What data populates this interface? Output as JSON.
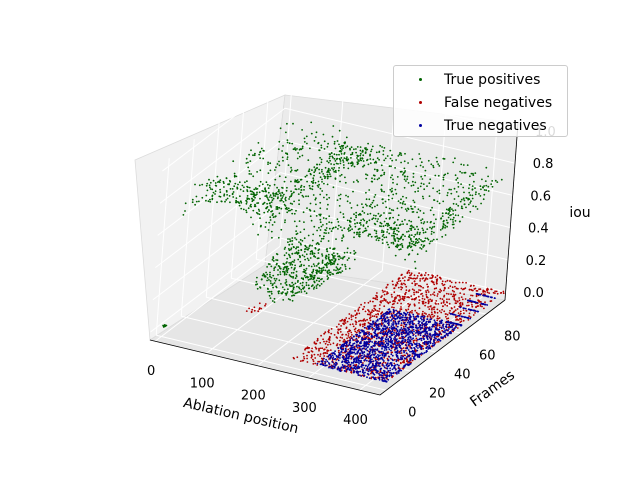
{
  "chart_data": {
    "type": "scatter3d",
    "title": "",
    "xlabel": "Ablation position",
    "ylabel": "Frames",
    "zlabel": "iou",
    "xticks": [
      "0",
      "100",
      "200",
      "300",
      "400"
    ],
    "yticks": [
      "0",
      "20",
      "40",
      "60",
      "80"
    ],
    "zticks": [
      "0.0",
      "0.2",
      "0.4",
      "0.6",
      "0.8",
      "1.0"
    ],
    "xlim": [
      -10,
      440
    ],
    "ylim": [
      -5,
      95
    ],
    "zlim": [
      -0.05,
      1.05
    ],
    "grid": true,
    "legend_position": "top-right",
    "series": [
      {
        "name": "True positives",
        "color": "#006400",
        "regions": [
          {
            "x": [
              0,
              440
            ],
            "y": [
              10,
              90
            ],
            "z": [
              0.45,
              0.9
            ],
            "density": "high"
          },
          {
            "x": [
              170,
              300
            ],
            "y": [
              0,
              30
            ],
            "z": [
              0.3,
              0.65
            ],
            "density": "medium"
          },
          {
            "x": [
              0,
              5
            ],
            "y": [
              0,
              2
            ],
            "z": [
              0.0,
              0.02
            ],
            "density": "sparse"
          }
        ]
      },
      {
        "name": "False negatives",
        "color": "#b00000",
        "regions": [
          {
            "x": [
              250,
              440
            ],
            "y": [
              0,
              95
            ],
            "z": [
              0.0,
              0.0
            ],
            "density": "high"
          },
          {
            "x": [
              90,
              110
            ],
            "y": [
              30,
              40
            ],
            "z": [
              0.0,
              0.0
            ],
            "density": "sparse"
          }
        ]
      },
      {
        "name": "True negatives",
        "color": "#0000a0",
        "regions": [
          {
            "x": [
              300,
              440
            ],
            "y": [
              0,
              60
            ],
            "z": [
              0.0,
              0.0
            ],
            "density": "high"
          },
          {
            "x": [
              400,
              440
            ],
            "y": [
              60,
              95
            ],
            "z": [
              0.0,
              0.0
            ],
            "density": "streaks"
          }
        ]
      }
    ]
  }
}
